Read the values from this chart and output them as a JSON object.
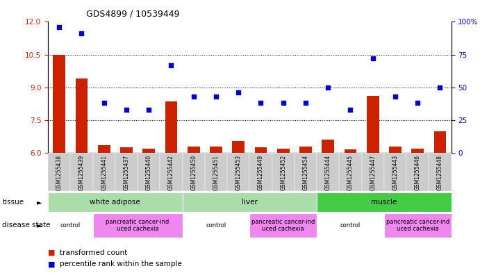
{
  "title": "GDS4899 / 10539449",
  "samples": [
    "GSM1255438",
    "GSM1255439",
    "GSM1255441",
    "GSM1255437",
    "GSM1255440",
    "GSM1255442",
    "GSM1255450",
    "GSM1255451",
    "GSM1255453",
    "GSM1255449",
    "GSM1255452",
    "GSM1255454",
    "GSM1255444",
    "GSM1255445",
    "GSM1255447",
    "GSM1255443",
    "GSM1255446",
    "GSM1255448"
  ],
  "red_values": [
    10.5,
    9.4,
    6.35,
    6.25,
    6.2,
    8.35,
    6.3,
    6.3,
    6.55,
    6.25,
    6.2,
    6.3,
    6.6,
    6.15,
    8.6,
    6.3,
    6.2,
    7.0
  ],
  "blue_values": [
    96,
    91,
    38,
    33,
    33,
    67,
    43,
    43,
    46,
    38,
    38,
    38,
    50,
    33,
    72,
    43,
    38,
    50
  ],
  "ylim_left": [
    6,
    12
  ],
  "ylim_right": [
    0,
    100
  ],
  "yticks_left": [
    6,
    7.5,
    9,
    10.5,
    12
  ],
  "yticks_right": [
    0,
    25,
    50,
    75,
    100
  ],
  "grid_values": [
    7.5,
    9.0,
    10.5
  ],
  "tissue_groups": [
    {
      "label": "white adipose",
      "start": 0,
      "end": 6,
      "color": "#aaddaa"
    },
    {
      "label": "liver",
      "start": 6,
      "end": 12,
      "color": "#aaddaa"
    },
    {
      "label": "muscle",
      "start": 12,
      "end": 18,
      "color": "#44cc44"
    }
  ],
  "disease_colors_alt": [
    "#FFFFFF",
    "#EE88EE"
  ],
  "disease_groups": [
    {
      "label": "control",
      "start": 0,
      "end": 2,
      "alt": 0
    },
    {
      "label": "pancreatic cancer-ind\nuced cachexia",
      "start": 2,
      "end": 6,
      "alt": 1
    },
    {
      "label": "control",
      "start": 6,
      "end": 9,
      "alt": 0
    },
    {
      "label": "pancreatic cancer-ind\nuced cachexia",
      "start": 9,
      "end": 12,
      "alt": 1
    },
    {
      "label": "control",
      "start": 12,
      "end": 15,
      "alt": 0
    },
    {
      "label": "pancreatic cancer-ind\nuced cachexia",
      "start": 15,
      "end": 18,
      "alt": 1
    }
  ],
  "bar_color": "#CC2200",
  "dot_color": "#0000CC",
  "background_color": "#FFFFFF",
  "tick_bg_color": "#CCCCCC",
  "right_tick_labels": [
    "0",
    "25",
    "50",
    "75",
    "100%"
  ]
}
